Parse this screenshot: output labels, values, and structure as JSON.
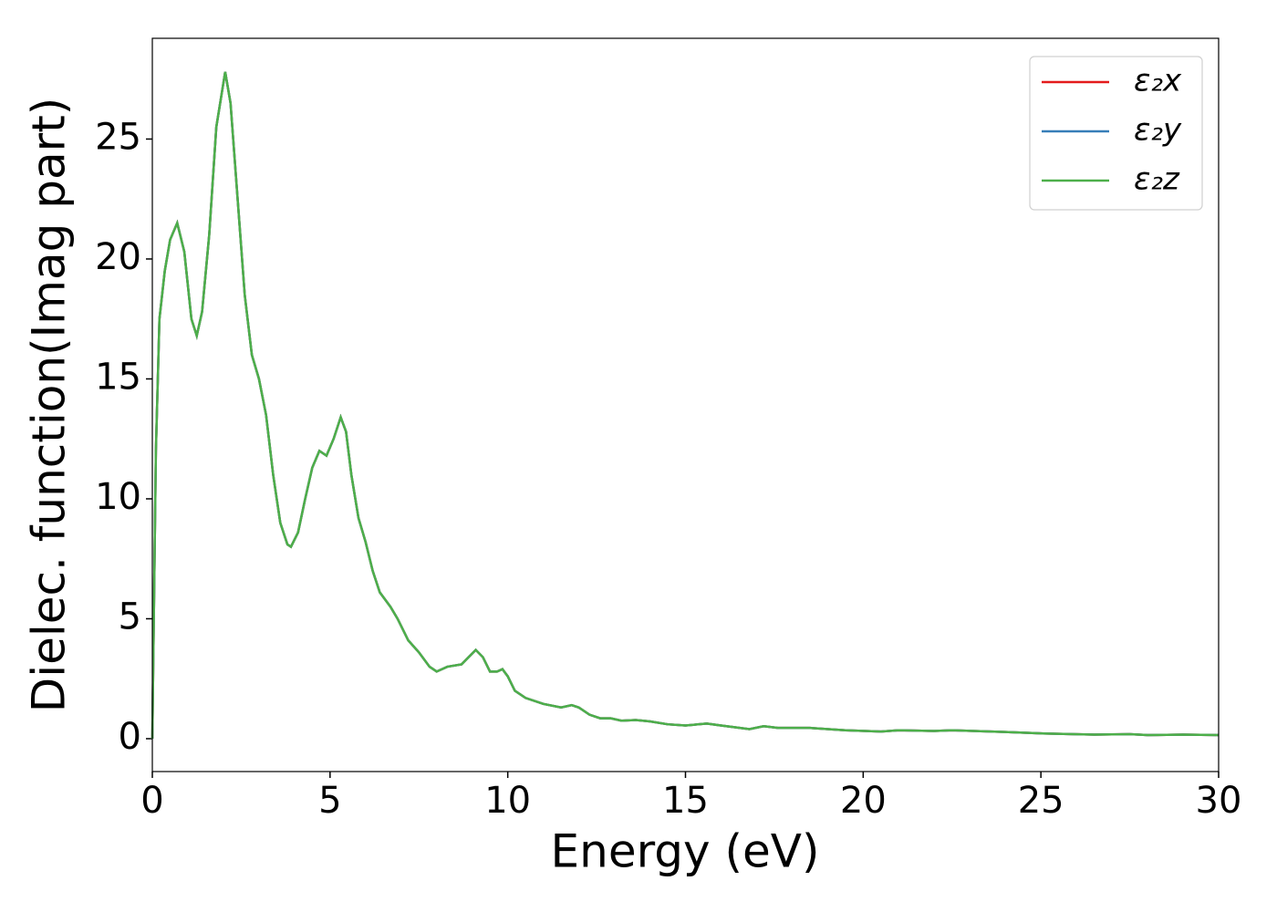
{
  "chart_data": {
    "type": "line",
    "xlabel": "Energy (eV)",
    "ylabel": "Dielec. function(Imag part)",
    "x": [
      0,
      0.1,
      0.2,
      0.35,
      0.5,
      0.7,
      0.9,
      1.1,
      1.25,
      1.4,
      1.6,
      1.8,
      2.05,
      2.2,
      2.4,
      2.6,
      2.8,
      3.0,
      3.2,
      3.4,
      3.6,
      3.8,
      3.9,
      4.1,
      4.3,
      4.5,
      4.7,
      4.9,
      5.1,
      5.3,
      5.45,
      5.6,
      5.8,
      6.0,
      6.2,
      6.4,
      6.7,
      6.9,
      7.2,
      7.5,
      7.8,
      8.0,
      8.3,
      8.7,
      8.9,
      9.1,
      9.3,
      9.5,
      9.7,
      9.85,
      10.0,
      10.2,
      10.5,
      11.0,
      11.5,
      11.8,
      12.0,
      12.3,
      12.6,
      12.9,
      13.2,
      13.6,
      14.0,
      14.5,
      15.0,
      15.6,
      16.0,
      16.8,
      17.2,
      17.6,
      18.5,
      19.5,
      20.5,
      21.0,
      22.0,
      22.5,
      24,
      25,
      26.5,
      27.5,
      28,
      29,
      30
    ],
    "series": [
      {
        "name": "ε₂x",
        "color": "#e41a1c",
        "values": [
          0,
          12,
          17.5,
          19.5,
          20.8,
          21.5,
          20.3,
          17.5,
          16.8,
          17.8,
          21,
          25.5,
          27.8,
          26.5,
          22.5,
          18.5,
          16,
          15,
          13.5,
          11,
          9,
          8.1,
          8.0,
          8.6,
          10,
          11.3,
          12.0,
          11.8,
          12.5,
          13.4,
          12.8,
          11,
          9.2,
          8.2,
          7,
          6.1,
          5.5,
          5.0,
          4.1,
          3.6,
          3.0,
          2.8,
          3.0,
          3.1,
          3.4,
          3.7,
          3.4,
          2.8,
          2.8,
          2.9,
          2.6,
          2.0,
          1.7,
          1.45,
          1.3,
          1.4,
          1.3,
          1.0,
          0.85,
          0.85,
          0.75,
          0.78,
          0.72,
          0.6,
          0.55,
          0.63,
          0.55,
          0.4,
          0.52,
          0.45,
          0.45,
          0.35,
          0.3,
          0.35,
          0.32,
          0.35,
          0.28,
          0.22,
          0.17,
          0.19,
          0.15,
          0.17,
          0.15
        ]
      },
      {
        "name": "ε₂y",
        "color": "#377eb8",
        "values": [
          0,
          12,
          17.5,
          19.5,
          20.8,
          21.5,
          20.3,
          17.5,
          16.8,
          17.8,
          21,
          25.5,
          27.8,
          26.5,
          22.5,
          18.5,
          16,
          15,
          13.5,
          11,
          9,
          8.1,
          8.0,
          8.6,
          10,
          11.3,
          12.0,
          11.8,
          12.5,
          13.4,
          12.8,
          11,
          9.2,
          8.2,
          7,
          6.1,
          5.5,
          5.0,
          4.1,
          3.6,
          3.0,
          2.8,
          3.0,
          3.1,
          3.4,
          3.7,
          3.4,
          2.8,
          2.8,
          2.9,
          2.6,
          2.0,
          1.7,
          1.45,
          1.3,
          1.4,
          1.3,
          1.0,
          0.85,
          0.85,
          0.75,
          0.78,
          0.72,
          0.6,
          0.55,
          0.63,
          0.55,
          0.4,
          0.52,
          0.45,
          0.45,
          0.35,
          0.3,
          0.35,
          0.32,
          0.35,
          0.28,
          0.22,
          0.17,
          0.19,
          0.15,
          0.17,
          0.15
        ]
      },
      {
        "name": "ε₂z",
        "color": "#4daf4a",
        "values": [
          0,
          12,
          17.5,
          19.5,
          20.8,
          21.5,
          20.3,
          17.5,
          16.8,
          17.8,
          21,
          25.5,
          27.8,
          26.5,
          22.5,
          18.5,
          16,
          15,
          13.5,
          11,
          9,
          8.1,
          8.0,
          8.6,
          10,
          11.3,
          12.0,
          11.8,
          12.5,
          13.4,
          12.8,
          11,
          9.2,
          8.2,
          7,
          6.1,
          5.5,
          5.0,
          4.1,
          3.6,
          3.0,
          2.8,
          3.0,
          3.1,
          3.4,
          3.7,
          3.4,
          2.8,
          2.8,
          2.9,
          2.6,
          2.0,
          1.7,
          1.45,
          1.3,
          1.4,
          1.3,
          1.0,
          0.85,
          0.85,
          0.75,
          0.78,
          0.72,
          0.6,
          0.55,
          0.63,
          0.55,
          0.4,
          0.52,
          0.45,
          0.45,
          0.35,
          0.3,
          0.35,
          0.32,
          0.35,
          0.28,
          0.22,
          0.17,
          0.19,
          0.15,
          0.17,
          0.15
        ]
      }
    ],
    "xlim": [
      0,
      30
    ],
    "xticks": [
      0,
      5,
      10,
      15,
      20,
      25,
      30
    ],
    "ylim": [
      -1.37,
      29.2
    ],
    "yticks": [
      0,
      5,
      10,
      15,
      20,
      25
    ],
    "grid": false,
    "legend": "upper right"
  }
}
